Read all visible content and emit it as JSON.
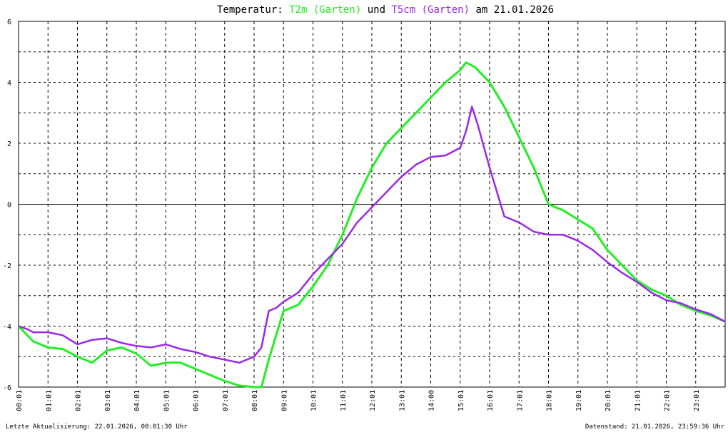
{
  "chart_data": {
    "type": "line",
    "title": {
      "prefix": "Temperatur: ",
      "series1_label": "T2m (Garten)",
      "connector": " und ",
      "series2_label": "T5cm (Garten)",
      "suffix": " am 21.01.2026"
    },
    "ylim": [
      -6,
      6
    ],
    "yticks": [
      6,
      4,
      2,
      0,
      -2,
      -4,
      -6
    ],
    "xlim": [
      0,
      24
    ],
    "xtick_labels": [
      "00:01",
      "01:01",
      "02:01",
      "03:01",
      "04:01",
      "05:01",
      "06:01",
      "07:01",
      "08:01",
      "09:01",
      "10:01",
      "11:01",
      "12:01",
      "13:01",
      "14:00",
      "15:01",
      "16:01",
      "17:01",
      "18:01",
      "19:01",
      "20:01",
      "21:01",
      "22:01",
      "23:01"
    ],
    "grid": true,
    "legend": "in title",
    "series": [
      {
        "name": "T2m (Garten)",
        "color": "#22ee22",
        "x": [
          0,
          0.5,
          1,
          1.5,
          2,
          2.5,
          3,
          3.5,
          4,
          4.5,
          5,
          5.5,
          6,
          6.5,
          7,
          7.5,
          8,
          8.25,
          8.5,
          8.75,
          9,
          9.5,
          10,
          10.5,
          11,
          11.5,
          12,
          12.5,
          13,
          13.5,
          14,
          14.5,
          15,
          15.2,
          15.5,
          16,
          16.5,
          17,
          17.5,
          18,
          18.5,
          19,
          19.5,
          20,
          20.5,
          21,
          21.5,
          22,
          22.5,
          23,
          23.5,
          24
        ],
        "values": [
          -4.0,
          -4.5,
          -4.7,
          -4.75,
          -5.0,
          -5.2,
          -4.8,
          -4.7,
          -4.9,
          -5.3,
          -5.2,
          -5.2,
          -5.4,
          -5.6,
          -5.8,
          -5.95,
          -6.0,
          -6.0,
          -5.1,
          -4.3,
          -3.5,
          -3.3,
          -2.7,
          -2.0,
          -1.0,
          0.2,
          1.2,
          2.0,
          2.5,
          3.0,
          3.5,
          4.0,
          4.4,
          4.65,
          4.5,
          4.0,
          3.2,
          2.2,
          1.2,
          0.0,
          -0.2,
          -0.5,
          -0.8,
          -1.5,
          -2.0,
          -2.5,
          -2.8,
          -3.0,
          -3.3,
          -3.5,
          -3.65,
          -3.85
        ]
      },
      {
        "name": "T5cm (Garten)",
        "color": "#9a28e8",
        "x": [
          0,
          0.3,
          0.5,
          1,
          1.5,
          2,
          2.5,
          3,
          3.5,
          4,
          4.5,
          5,
          5.5,
          6,
          6.5,
          7,
          7.5,
          8,
          8.25,
          8.5,
          8.75,
          9,
          9.5,
          10,
          10.5,
          11,
          11.5,
          12,
          12.5,
          13,
          13.5,
          14,
          14.5,
          15,
          15.2,
          15.4,
          15.6,
          16,
          16.5,
          17,
          17.5,
          18,
          18.5,
          19,
          19.5,
          20,
          20.5,
          21,
          21.5,
          22,
          22.5,
          23,
          23.5,
          24
        ],
        "values": [
          -4.0,
          -4.1,
          -4.2,
          -4.2,
          -4.3,
          -4.6,
          -4.45,
          -4.4,
          -4.55,
          -4.65,
          -4.7,
          -4.6,
          -4.75,
          -4.85,
          -5.0,
          -5.1,
          -5.2,
          -5.0,
          -4.7,
          -3.5,
          -3.4,
          -3.2,
          -2.9,
          -2.3,
          -1.8,
          -1.3,
          -0.6,
          -0.1,
          0.4,
          0.9,
          1.3,
          1.55,
          1.6,
          1.85,
          2.4,
          3.2,
          2.6,
          1.2,
          -0.4,
          -0.6,
          -0.9,
          -1.0,
          -1.0,
          -1.2,
          -1.5,
          -1.9,
          -2.25,
          -2.55,
          -2.9,
          -3.15,
          -3.25,
          -3.45,
          -3.6,
          -3.85
        ]
      }
    ]
  },
  "footer": {
    "left": "Letzte Aktualisierung: 22.01.2026, 00:01:30 Uhr",
    "right": "Datenstand: 21.01.2026, 23:59:36 Uhr"
  }
}
